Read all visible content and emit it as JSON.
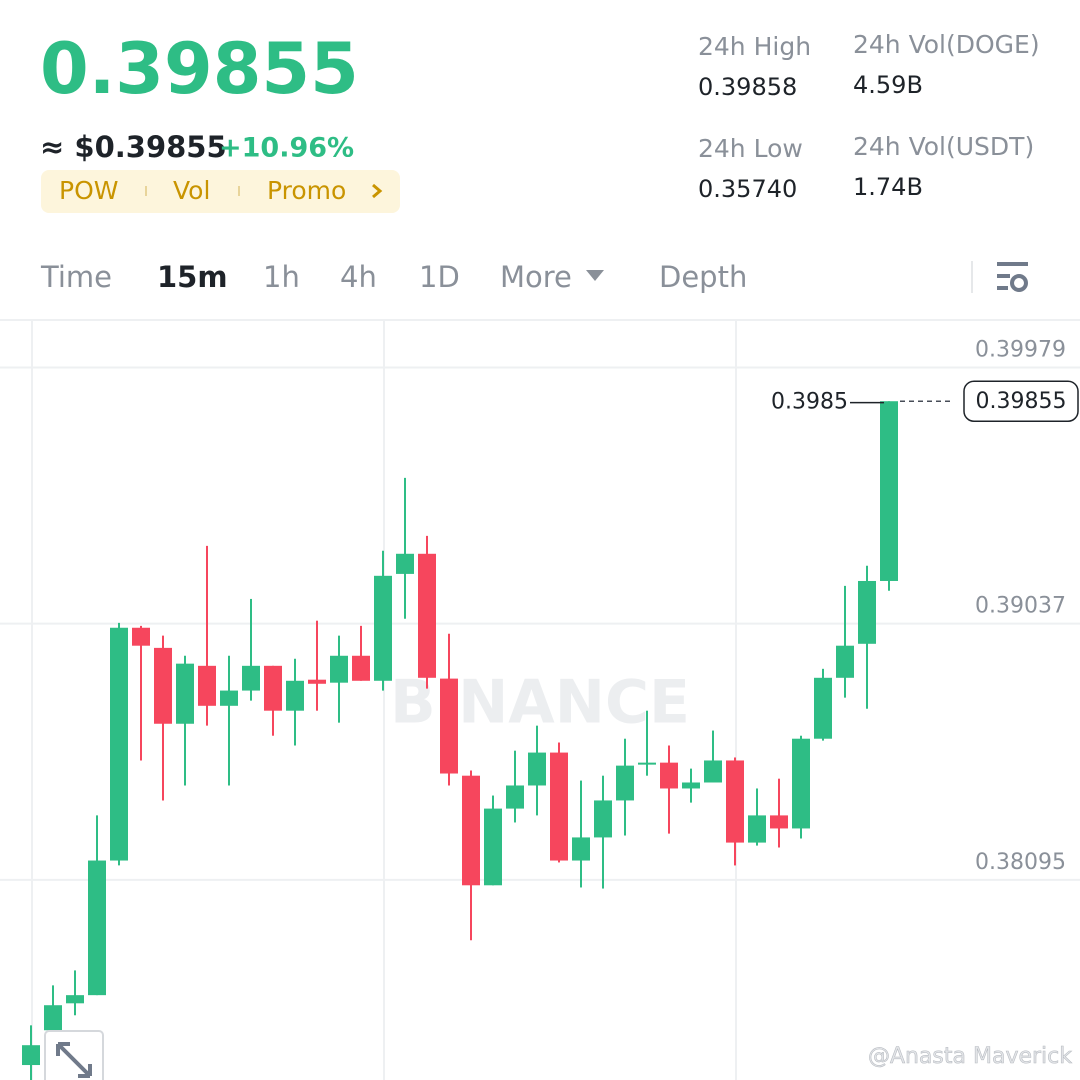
{
  "header": {
    "price": "0.39855",
    "approx": "≈ $0.39855",
    "change": "+10.96%",
    "tags": [
      "POW",
      "Vol",
      "Promo"
    ]
  },
  "stats": [
    {
      "label": "24h High",
      "value": "0.39858"
    },
    {
      "label": "24h Vol(DOGE)",
      "value": "4.59B"
    },
    {
      "label": "24h Low",
      "value": "0.35740"
    },
    {
      "label": "24h Vol(USDT)",
      "value": "1.74B"
    }
  ],
  "tabs": [
    "Time",
    "15m",
    "1h",
    "4h",
    "1D",
    "More",
    "Depth"
  ],
  "logo_watermark": "BINANCE",
  "watermark": "@Anasta Maverick",
  "chart_data": {
    "type": "candlestick",
    "up_color": "#2ebd85",
    "down_color": "#f6465d",
    "ylim": [
      0.37359,
      0.4015
    ],
    "yticks": [
      0.39979,
      0.39037,
      0.38095
    ],
    "grid": true,
    "last_price": 0.39855,
    "max_marker": 0.3985,
    "candles": [
      {
        "open": 0.37414,
        "high": 0.3756,
        "low": 0.37358,
        "close": 0.37487
      },
      {
        "open": 0.37542,
        "high": 0.37707,
        "low": 0.37505,
        "close": 0.37634
      },
      {
        "open": 0.37641,
        "high": 0.37762,
        "low": 0.37597,
        "close": 0.37671
      },
      {
        "open": 0.37671,
        "high": 0.38332,
        "low": 0.37671,
        "close": 0.38166
      },
      {
        "open": 0.38166,
        "high": 0.3904,
        "low": 0.38148,
        "close": 0.39022
      },
      {
        "open": 0.39022,
        "high": 0.39029,
        "low": 0.38534,
        "close": 0.38956
      },
      {
        "open": 0.38948,
        "high": 0.38993,
        "low": 0.38387,
        "close": 0.38669
      },
      {
        "open": 0.38669,
        "high": 0.38919,
        "low": 0.38442,
        "close": 0.3889
      },
      {
        "open": 0.38882,
        "high": 0.39323,
        "low": 0.38662,
        "close": 0.38735
      },
      {
        "open": 0.38735,
        "high": 0.38919,
        "low": 0.38442,
        "close": 0.38791
      },
      {
        "open": 0.38791,
        "high": 0.39128,
        "low": 0.38754,
        "close": 0.38882
      },
      {
        "open": 0.38882,
        "high": 0.38882,
        "low": 0.38625,
        "close": 0.38717
      },
      {
        "open": 0.38717,
        "high": 0.38908,
        "low": 0.38589,
        "close": 0.38827
      },
      {
        "open": 0.38831,
        "high": 0.39048,
        "low": 0.38717,
        "close": 0.38816
      },
      {
        "open": 0.3882,
        "high": 0.38993,
        "low": 0.38673,
        "close": 0.38919
      },
      {
        "open": 0.38919,
        "high": 0.39029,
        "low": 0.38827,
        "close": 0.38827
      },
      {
        "open": 0.38827,
        "high": 0.39305,
        "low": 0.38791,
        "close": 0.39213
      },
      {
        "open": 0.3922,
        "high": 0.39573,
        "low": 0.39055,
        "close": 0.39294
      },
      {
        "open": 0.39294,
        "high": 0.3936,
        "low": 0.38798,
        "close": 0.38838
      },
      {
        "open": 0.38835,
        "high": 0.39,
        "low": 0.38442,
        "close": 0.38486
      },
      {
        "open": 0.38478,
        "high": 0.38497,
        "low": 0.37873,
        "close": 0.38075
      },
      {
        "open": 0.38075,
        "high": 0.38405,
        "low": 0.38075,
        "close": 0.38357
      },
      {
        "open": 0.38357,
        "high": 0.3857,
        "low": 0.38306,
        "close": 0.38442
      },
      {
        "open": 0.38442,
        "high": 0.38662,
        "low": 0.38332,
        "close": 0.38563
      },
      {
        "open": 0.38563,
        "high": 0.386,
        "low": 0.38159,
        "close": 0.38166
      },
      {
        "open": 0.38166,
        "high": 0.3846,
        "low": 0.38067,
        "close": 0.38251
      },
      {
        "open": 0.38251,
        "high": 0.38478,
        "low": 0.38063,
        "close": 0.38387
      },
      {
        "open": 0.38387,
        "high": 0.38614,
        "low": 0.38258,
        "close": 0.38515
      },
      {
        "open": 0.38519,
        "high": 0.38717,
        "low": 0.38478,
        "close": 0.38526
      },
      {
        "open": 0.38526,
        "high": 0.38589,
        "low": 0.38265,
        "close": 0.38431
      },
      {
        "open": 0.38431,
        "high": 0.38504,
        "low": 0.38379,
        "close": 0.38453
      },
      {
        "open": 0.38453,
        "high": 0.38644,
        "low": 0.38453,
        "close": 0.38534
      },
      {
        "open": 0.38534,
        "high": 0.38545,
        "low": 0.38148,
        "close": 0.38232
      },
      {
        "open": 0.38232,
        "high": 0.38431,
        "low": 0.38221,
        "close": 0.38332
      },
      {
        "open": 0.38332,
        "high": 0.38467,
        "low": 0.38214,
        "close": 0.38284
      },
      {
        "open": 0.38284,
        "high": 0.38625,
        "low": 0.38247,
        "close": 0.38614
      },
      {
        "open": 0.38614,
        "high": 0.38871,
        "low": 0.38607,
        "close": 0.38838
      },
      {
        "open": 0.38838,
        "high": 0.39176,
        "low": 0.38765,
        "close": 0.38956
      },
      {
        "open": 0.38963,
        "high": 0.3925,
        "low": 0.38724,
        "close": 0.39194
      },
      {
        "open": 0.39194,
        "high": 0.39855,
        "low": 0.39158,
        "close": 0.39855
      }
    ]
  }
}
